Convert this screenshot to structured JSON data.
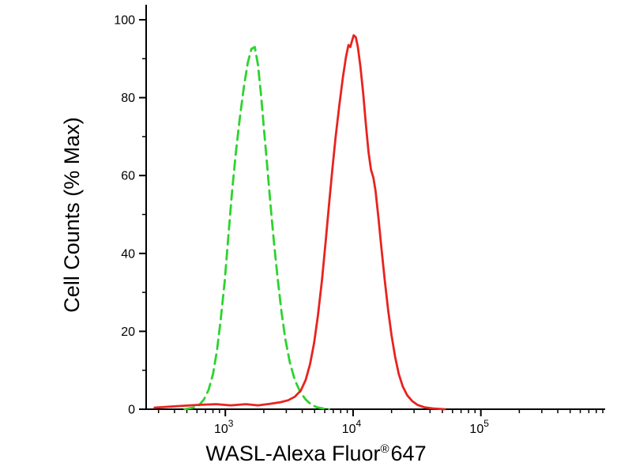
{
  "chart_data": {
    "type": "line",
    "xlabel": "WASL-Alexa Fluor®647",
    "xlabel_parts": {
      "main": "WASL-Alexa Fluor",
      "sup": "®",
      "suffix": "647"
    },
    "ylabel": "Cell Counts (% Max)",
    "x_scale": "log",
    "x_range": [
      240,
      900000
    ],
    "y_range": [
      0,
      100
    ],
    "y_ticks": [
      0,
      20,
      40,
      60,
      80,
      100
    ],
    "y_minor_ticks": [
      10,
      30,
      50,
      70,
      90
    ],
    "x_major_ticks": [
      {
        "value": 1000,
        "base": "10",
        "exponent": "3"
      },
      {
        "value": 10000,
        "base": "10",
        "exponent": "4"
      },
      {
        "value": 100000,
        "base": "10",
        "exponent": "5"
      }
    ],
    "grid": false,
    "legend": "none",
    "axis_color": "#000000",
    "series": [
      {
        "name": "green-dashed",
        "color": "#2ed32e",
        "style": "dashed",
        "peak_x": 1700,
        "peak_y": 93,
        "points": [
          [
            480,
            0
          ],
          [
            560,
            0.4
          ],
          [
            620,
            1
          ],
          [
            680,
            2.5
          ],
          [
            740,
            5
          ],
          [
            800,
            9
          ],
          [
            860,
            15
          ],
          [
            920,
            23
          ],
          [
            990,
            33
          ],
          [
            1060,
            45
          ],
          [
            1130,
            56
          ],
          [
            1210,
            66
          ],
          [
            1300,
            75
          ],
          [
            1400,
            83
          ],
          [
            1500,
            89
          ],
          [
            1600,
            92.5
          ],
          [
            1700,
            93
          ],
          [
            1800,
            88.5
          ],
          [
            1900,
            81
          ],
          [
            2000,
            72.5
          ],
          [
            2120,
            63
          ],
          [
            2250,
            53
          ],
          [
            2400,
            43
          ],
          [
            2570,
            33.5
          ],
          [
            2750,
            25
          ],
          [
            2950,
            18
          ],
          [
            3200,
            12
          ],
          [
            3500,
            7.5
          ],
          [
            3850,
            4.5
          ],
          [
            4250,
            2.5
          ],
          [
            4700,
            1.2
          ],
          [
            5200,
            0.5
          ],
          [
            5800,
            0.2
          ],
          [
            6500,
            0
          ]
        ]
      },
      {
        "name": "red-solid",
        "color": "#e8231f",
        "style": "solid",
        "peak_x": 10100,
        "peak_y": 96,
        "points": [
          [
            280,
            0.4
          ],
          [
            420,
            0.8
          ],
          [
            600,
            1.1
          ],
          [
            850,
            1.3
          ],
          [
            1100,
            1
          ],
          [
            1450,
            1.3
          ],
          [
            1800,
            1
          ],
          [
            2250,
            1.4
          ],
          [
            2700,
            1.8
          ],
          [
            3100,
            2.3
          ],
          [
            3500,
            3.2
          ],
          [
            3900,
            4.8
          ],
          [
            4250,
            7.5
          ],
          [
            4600,
            11.5
          ],
          [
            4950,
            17
          ],
          [
            5300,
            24
          ],
          [
            5700,
            33
          ],
          [
            6100,
            43
          ],
          [
            6500,
            53
          ],
          [
            6900,
            62
          ],
          [
            7300,
            70
          ],
          [
            7800,
            78
          ],
          [
            8300,
            85
          ],
          [
            8800,
            90.5
          ],
          [
            9200,
            93.5
          ],
          [
            9500,
            93
          ],
          [
            9800,
            94.5
          ],
          [
            10100,
            96
          ],
          [
            10500,
            95.5
          ],
          [
            10900,
            93
          ],
          [
            11400,
            88
          ],
          [
            12000,
            81
          ],
          [
            12600,
            73
          ],
          [
            13200,
            66
          ],
          [
            13800,
            61.5
          ],
          [
            14400,
            59.5
          ],
          [
            15000,
            56
          ],
          [
            15800,
            49
          ],
          [
            16700,
            41
          ],
          [
            17700,
            33
          ],
          [
            18800,
            25.5
          ],
          [
            20000,
            19
          ],
          [
            21300,
            13.5
          ],
          [
            22800,
            9
          ],
          [
            24500,
            5.8
          ],
          [
            26500,
            3.6
          ],
          [
            29000,
            2.1
          ],
          [
            32000,
            1.1
          ],
          [
            36000,
            0.5
          ],
          [
            42000,
            0.2
          ],
          [
            52000,
            0
          ]
        ]
      }
    ]
  }
}
